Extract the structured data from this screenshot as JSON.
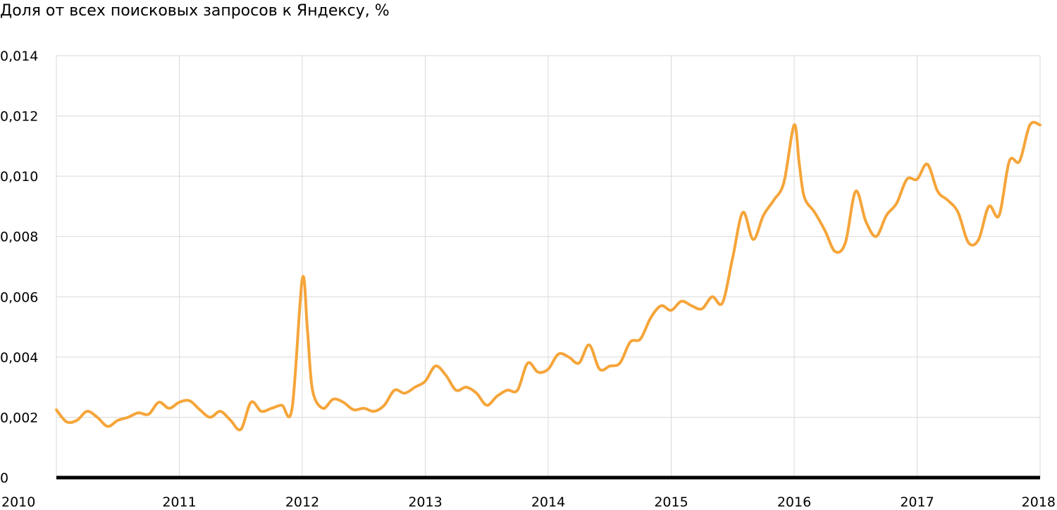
{
  "chart_data": {
    "type": "line",
    "title": "Доля от всех поисковых запросов к Яндексу, %",
    "xlabel": "",
    "ylabel": "",
    "xlim": [
      2010,
      2018
    ],
    "ylim": [
      0,
      0.014
    ],
    "grid": true,
    "y_ticks": [
      {
        "value": 0,
        "label": "0"
      },
      {
        "value": 0.002,
        "label": "0,002"
      },
      {
        "value": 0.004,
        "label": "0,004"
      },
      {
        "value": 0.006,
        "label": "0,006"
      },
      {
        "value": 0.008,
        "label": "0,008"
      },
      {
        "value": 0.01,
        "label": "0,010"
      },
      {
        "value": 0.012,
        "label": "0,012"
      },
      {
        "value": 0.014,
        "label": "0,014"
      }
    ],
    "x_ticks": [
      {
        "value": 2010,
        "label": "2010"
      },
      {
        "value": 2011,
        "label": "2011"
      },
      {
        "value": 2012,
        "label": "2012"
      },
      {
        "value": 2013,
        "label": "2013"
      },
      {
        "value": 2014,
        "label": "2014"
      },
      {
        "value": 2015,
        "label": "2015"
      },
      {
        "value": 2016,
        "label": "2016"
      },
      {
        "value": 2017,
        "label": "2017"
      },
      {
        "value": 2018,
        "label": "2018"
      }
    ],
    "colors": {
      "line": "#F5A53A",
      "baseline": "#000000",
      "grid": "#d9d9d9"
    },
    "series": [
      {
        "x": [
          2010.0,
          2010.083,
          2010.167,
          2010.25,
          2010.333,
          2010.417,
          2010.5,
          2010.583,
          2010.667,
          2010.75,
          2010.833,
          2010.917,
          2011.0,
          2011.083,
          2011.167,
          2011.25,
          2011.333,
          2011.417,
          2011.5,
          2011.583,
          2011.667,
          2011.75,
          2011.833,
          2011.917,
          2012.0,
          2012.042,
          2012.083,
          2012.167,
          2012.25,
          2012.333,
          2012.417,
          2012.5,
          2012.583,
          2012.667,
          2012.75,
          2012.833,
          2012.917,
          2013.0,
          2013.083,
          2013.167,
          2013.25,
          2013.333,
          2013.417,
          2013.5,
          2013.583,
          2013.667,
          2013.75,
          2013.833,
          2013.917,
          2014.0,
          2014.083,
          2014.167,
          2014.25,
          2014.333,
          2014.417,
          2014.5,
          2014.583,
          2014.667,
          2014.75,
          2014.833,
          2014.917,
          2015.0,
          2015.083,
          2015.167,
          2015.25,
          2015.333,
          2015.417,
          2015.5,
          2015.583,
          2015.667,
          2015.75,
          2015.833,
          2015.917,
          2016.0,
          2016.042,
          2016.083,
          2016.167,
          2016.25,
          2016.333,
          2016.417,
          2016.5,
          2016.583,
          2016.667,
          2016.75,
          2016.833,
          2016.917,
          2017.0,
          2017.083,
          2017.167,
          2017.25,
          2017.333,
          2017.417,
          2017.5,
          2017.583,
          2017.667,
          2017.75,
          2017.833,
          2017.917,
          2018.0
        ],
        "values": [
          0.00225,
          0.00185,
          0.0019,
          0.0022,
          0.002,
          0.0017,
          0.0019,
          0.002,
          0.00215,
          0.0021,
          0.0025,
          0.0023,
          0.0025,
          0.00255,
          0.00225,
          0.002,
          0.0022,
          0.0019,
          0.0016,
          0.0025,
          0.0022,
          0.0023,
          0.0024,
          0.0023,
          0.0066,
          0.0049,
          0.0029,
          0.0023,
          0.0026,
          0.0025,
          0.00225,
          0.0023,
          0.0022,
          0.0024,
          0.0029,
          0.0028,
          0.003,
          0.0032,
          0.0037,
          0.0034,
          0.0029,
          0.003,
          0.0028,
          0.0024,
          0.0027,
          0.0029,
          0.0029,
          0.0038,
          0.0035,
          0.0036,
          0.0041,
          0.004,
          0.0038,
          0.0044,
          0.0036,
          0.0037,
          0.0038,
          0.0045,
          0.0046,
          0.0053,
          0.0057,
          0.00555,
          0.00585,
          0.0057,
          0.0056,
          0.006,
          0.0058,
          0.0073,
          0.0088,
          0.0079,
          0.0087,
          0.0092,
          0.0098,
          0.0117,
          0.0104,
          0.0093,
          0.0088,
          0.0082,
          0.0075,
          0.0078,
          0.0095,
          0.0085,
          0.008,
          0.0087,
          0.0091,
          0.0099,
          0.0099,
          0.0104,
          0.0095,
          0.0092,
          0.0088,
          0.0078,
          0.0079,
          0.009,
          0.0087,
          0.0105,
          0.0105,
          0.0117,
          0.0117
        ]
      }
    ]
  }
}
